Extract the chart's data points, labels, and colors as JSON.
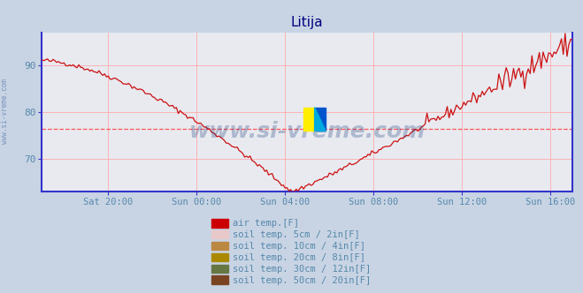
{
  "title": "Litija",
  "title_color": "#000080",
  "bg_color": "#c8d4e4",
  "plot_bg_color": "#e8eaf0",
  "grid_color": "#ffaaaa",
  "axis_color": "#3333cc",
  "tick_color": "#5588aa",
  "watermark": "www.si-vreme.com",
  "watermark_color": "#1a3a7a",
  "watermark_alpha": 0.28,
  "ylim": [
    63,
    97
  ],
  "yticks": [
    70,
    80,
    90
  ],
  "xtick_labels": [
    "Sat 20:00",
    "Sun 00:00",
    "Sun 04:00",
    "Sun 08:00",
    "Sun 12:00",
    "Sun 16:00"
  ],
  "xtick_positions": [
    36,
    84,
    132,
    180,
    228,
    276
  ],
  "mean_line": 76.5,
  "mean_line_color": "#ff5555",
  "line_color": "#cc1111",
  "line_width": 0.9,
  "num_points": 289,
  "logo_yellow": "#ffee00",
  "logo_blue": "#0055cc",
  "logo_cyan": "#00aadd",
  "legend_items": [
    {
      "label": "air temp.[F]",
      "color": "#cc0000"
    },
    {
      "label": "soil temp. 5cm / 2in[F]",
      "color": "#e8c8c8"
    },
    {
      "label": "soil temp. 10cm / 4in[F]",
      "color": "#bb8844"
    },
    {
      "label": "soil temp. 20cm / 8in[F]",
      "color": "#aa8800"
    },
    {
      "label": "soil temp. 30cm / 12in[F]",
      "color": "#667744"
    },
    {
      "label": "soil temp. 50cm / 20in[F]",
      "color": "#7a4422"
    }
  ]
}
